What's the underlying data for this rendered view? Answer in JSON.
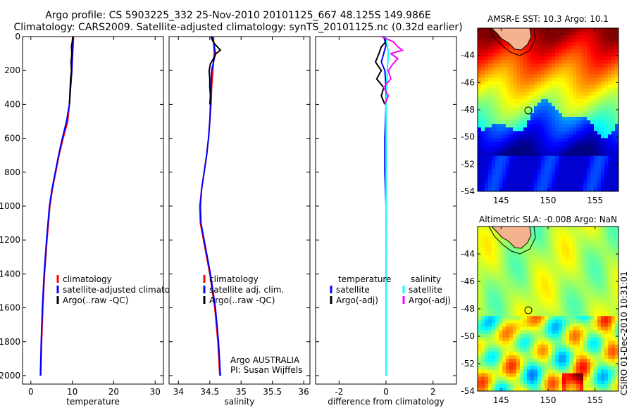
{
  "header": {
    "line1": "Argo profile: CS 5903225_332 25-Nov-2010 20101125_667 48.125S 149.986E",
    "line2": "Climatology: CARS2009. Satellite-adjusted climatology: synTS_20101125.nc (0.32d earlier)"
  },
  "footer_credit": "CSIRO 01-Dec-2010 10:31:01",
  "colors": {
    "climatology": "#ff0000",
    "satellite": "#0000ff",
    "argo": "#000000",
    "salinity_satellite": "#00ffff",
    "salinity_argo": "#ff00ff",
    "land": "#f4b38e"
  },
  "chart_data": [
    {
      "type": "line",
      "id": "temperature",
      "xlabel": "temperature",
      "ylabel": "",
      "xlim": [
        -2,
        32
      ],
      "ylim": [
        2050,
        0
      ],
      "xticks": [
        0,
        10,
        20,
        30
      ],
      "xtick_labels": [
        "0",
        "10",
        "20",
        "30"
      ],
      "yticks": [
        0,
        200,
        400,
        600,
        800,
        1000,
        1200,
        1400,
        1600,
        1800,
        2000
      ],
      "ytick_labels": [
        "0",
        "200",
        "400",
        "600",
        "800",
        "1000",
        "1200",
        "1400",
        "1600",
        "1800",
        "2000"
      ],
      "legend": [
        {
          "label": "climatology",
          "color": "#ff0000"
        },
        {
          "label": "satellite-adjusted climatology",
          "color": "#0000ff"
        },
        {
          "label": "Argo(..raw -QC)",
          "color": "#000000"
        }
      ],
      "series": [
        {
          "name": "climatology",
          "color": "#ff0000",
          "depth": [
            0,
            100,
            200,
            300,
            400,
            500,
            600,
            700,
            800,
            900,
            1000,
            1200,
            1400,
            1600,
            1800,
            2000
          ],
          "values": [
            10.3,
            10.1,
            9.9,
            9.6,
            9.3,
            8.9,
            7.8,
            6.8,
            6.0,
            5.2,
            4.6,
            3.9,
            3.3,
            2.9,
            2.6,
            2.4
          ]
        },
        {
          "name": "satellite-adjusted climatology",
          "color": "#0000ff",
          "depth": [
            0,
            100,
            200,
            300,
            400,
            500,
            600,
            700,
            800,
            900,
            1000,
            1200,
            1400,
            1600,
            1800,
            2000
          ],
          "values": [
            10.2,
            10.0,
            9.9,
            9.6,
            9.3,
            8.6,
            7.6,
            6.7,
            5.9,
            5.1,
            4.5,
            3.8,
            3.2,
            2.8,
            2.5,
            2.3
          ]
        },
        {
          "name": "Argo(..raw -QC)",
          "color": "#000000",
          "depth": [
            0,
            30,
            60,
            100,
            150,
            200,
            250,
            300,
            350,
            400
          ],
          "values": [
            10.1,
            10.0,
            9.8,
            9.9,
            9.7,
            9.8,
            9.6,
            9.5,
            9.4,
            9.3
          ]
        }
      ]
    },
    {
      "type": "line",
      "id": "salinity",
      "xlabel": "salinity",
      "xlim": [
        33.85,
        36.1
      ],
      "ylim": [
        2050,
        0
      ],
      "xticks": [
        34,
        34.5,
        35,
        35.5,
        36
      ],
      "xtick_labels": [
        "34",
        "34.5",
        "35",
        "35.5",
        "36"
      ],
      "legend": [
        {
          "label": "climatology",
          "color": "#ff0000"
        },
        {
          "label": "satellite adj. clim.",
          "color": "#0000ff"
        },
        {
          "label": "Argo(..raw -QC)",
          "color": "#000000"
        }
      ],
      "annotation": [
        "Argo AUSTRALIA",
        "PI: Susan Wijffels"
      ],
      "series": [
        {
          "name": "climatology",
          "color": "#ff0000",
          "depth": [
            0,
            100,
            200,
            300,
            400,
            500,
            600,
            700,
            800,
            900,
            1000,
            1100,
            1200,
            1400,
            1600,
            1800,
            2000
          ],
          "values": [
            34.56,
            34.57,
            34.55,
            34.53,
            34.52,
            34.5,
            34.48,
            34.45,
            34.41,
            34.37,
            34.34,
            34.35,
            34.4,
            34.5,
            34.58,
            34.63,
            34.66
          ]
        },
        {
          "name": "satellite adj. clim.",
          "color": "#0000ff",
          "depth": [
            0,
            50,
            100,
            150,
            200,
            300,
            400,
            500,
            600,
            700,
            800,
            900,
            1000,
            1100,
            1200,
            1400,
            1600,
            1800,
            2000
          ],
          "values": [
            34.54,
            34.57,
            34.59,
            34.56,
            34.53,
            34.52,
            34.51,
            34.5,
            34.48,
            34.45,
            34.41,
            34.37,
            34.35,
            34.36,
            34.41,
            34.51,
            34.59,
            34.64,
            34.67
          ]
        },
        {
          "name": "Argo(..raw -QC)",
          "color": "#000000",
          "depth": [
            0,
            20,
            40,
            60,
            80,
            100,
            130,
            160,
            200,
            250,
            300,
            350,
            400
          ],
          "values": [
            34.52,
            34.54,
            34.57,
            34.62,
            34.67,
            34.6,
            34.56,
            34.51,
            34.49,
            34.5,
            34.5,
            34.51,
            34.5
          ]
        }
      ]
    },
    {
      "type": "line",
      "id": "difference",
      "xlabel": "difference from climatology",
      "xlim": [
        -3,
        3
      ],
      "ylim": [
        2050,
        0
      ],
      "xticks": [
        -2,
        0,
        2
      ],
      "xtick_labels": [
        "-2",
        "0",
        "2"
      ],
      "legend_temperature": {
        "title": "temperature",
        "items": [
          {
            "label": "satellite",
            "color": "#0000ff"
          },
          {
            "label": "Argo(-adj)",
            "color": "#000000"
          }
        ]
      },
      "legend_salinity": {
        "title": "salinity",
        "items": [
          {
            "label": "satellite",
            "color": "#00ffff"
          },
          {
            "label": "Argo(-adj)",
            "color": "#ff00ff"
          }
        ]
      },
      "series": [
        {
          "name": "temperature satellite",
          "color": "#0000ff",
          "depth": [
            0,
            50,
            100,
            150,
            200,
            300,
            400,
            600,
            800,
            1000,
            1500,
            2000
          ],
          "values": [
            -0.1,
            0.0,
            -0.1,
            -0.2,
            -0.05,
            0.0,
            0.0,
            -0.05,
            -0.05,
            0.0,
            0.0,
            0.0
          ]
        },
        {
          "name": "temperature Argo(-adj)",
          "color": "#000000",
          "depth": [
            0,
            30,
            60,
            100,
            150,
            200,
            250,
            300,
            350,
            400
          ],
          "values": [
            -0.1,
            0.0,
            -0.2,
            -0.3,
            -0.45,
            -0.2,
            -0.4,
            -0.1,
            -0.2,
            -0.05
          ]
        },
        {
          "name": "salinity satellite",
          "color": "#00ffff",
          "depth": [
            0,
            100,
            200,
            400,
            600,
            800,
            1000,
            1500,
            2000
          ],
          "values": [
            0.0,
            0.1,
            0.05,
            0.0,
            0.0,
            0.0,
            0.0,
            0.0,
            0.0
          ]
        },
        {
          "name": "salinity Argo(-adj)",
          "color": "#ff00ff",
          "depth": [
            0,
            30,
            60,
            80,
            100,
            130,
            160,
            200,
            250,
            300,
            350,
            400
          ],
          "values": [
            -0.2,
            0.3,
            0.5,
            0.7,
            0.2,
            0.5,
            0.3,
            0.1,
            0.2,
            -0.1,
            0.1,
            -0.05
          ]
        }
      ]
    },
    {
      "type": "heatmap",
      "id": "sst_map",
      "title": "AMSR-E SST: 10.3 Argo: 10.1",
      "xlim": [
        142.5,
        157.5
      ],
      "ylim": [
        -54,
        -42
      ],
      "xticks": [
        145,
        150,
        155
      ],
      "xtick_labels": [
        "145",
        "150",
        "155"
      ],
      "yticks": [
        -44,
        -46,
        -48,
        -50,
        -52,
        -54
      ],
      "ytick_labels": [
        "-44",
        "-46",
        "-48",
        "-50",
        "-52",
        "-54"
      ],
      "float_position": {
        "lon": 149.986,
        "lat": -48.125
      }
    },
    {
      "type": "heatmap",
      "id": "sla_map",
      "title": "Altimetric SLA: -0.008 Argo: NaN",
      "xlim": [
        142.5,
        157.5
      ],
      "ylim": [
        -54,
        -42
      ],
      "xticks": [
        145,
        150,
        155
      ],
      "xtick_labels": [
        "145",
        "150",
        "155"
      ],
      "yticks": [
        -44,
        -46,
        -48,
        -50,
        -52,
        -54
      ],
      "ytick_labels": [
        "-44",
        "-46",
        "-48",
        "-50",
        "-52",
        "-54"
      ],
      "float_position": {
        "lon": 149.986,
        "lat": -48.125
      }
    }
  ]
}
